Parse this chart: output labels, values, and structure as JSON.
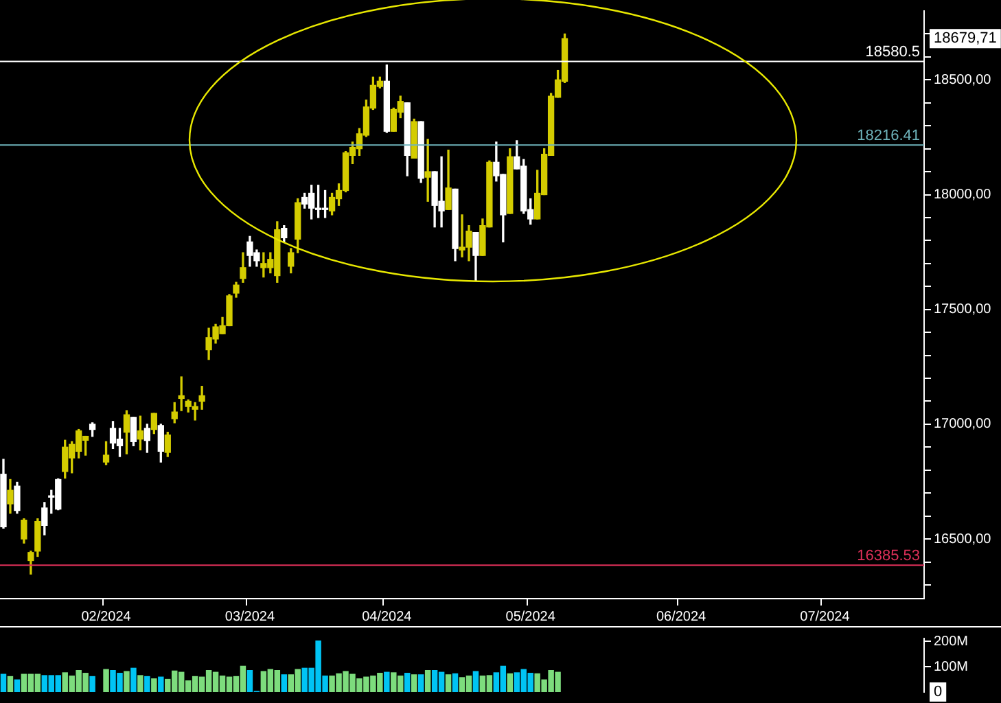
{
  "chart_data": [
    {
      "type": "candlestick",
      "categories": [
        null,
        null,
        null,
        null,
        null,
        null,
        null,
        null,
        null,
        null,
        null,
        null,
        null,
        null,
        null,
        "02/2024",
        null,
        null,
        null,
        null,
        null,
        null,
        null,
        null,
        null,
        null,
        null,
        null,
        null,
        null,
        null,
        null,
        null,
        null,
        null,
        null,
        "03/2024",
        null,
        null,
        null,
        null,
        null,
        null,
        null,
        null,
        null,
        null,
        null,
        null,
        null,
        null,
        null,
        null,
        null,
        null,
        null,
        "04/2024",
        null,
        null,
        null,
        null,
        null,
        null,
        null,
        null,
        null,
        null,
        null,
        null,
        null,
        null,
        null,
        null,
        null,
        null,
        null,
        null,
        "05/2024",
        null,
        null,
        null,
        null,
        null,
        null,
        null,
        null,
        null,
        null,
        null,
        null,
        null,
        null,
        null,
        null,
        null,
        null,
        null,
        null,
        null,
        "06/2024",
        null,
        null,
        null,
        null,
        null,
        null,
        null,
        null,
        null,
        null,
        null,
        null,
        null,
        null,
        null,
        null,
        null,
        null,
        null,
        null,
        "07/2024",
        null,
        null,
        null,
        null,
        null,
        null,
        null,
        null,
        null,
        null,
        null,
        null,
        null,
        null
      ],
      "ohlc": [
        [
          16782,
          16847,
          16547,
          16553
        ],
        [
          16653,
          16759,
          16612,
          16712
        ],
        [
          16730,
          16747,
          16612,
          16624
        ],
        [
          16500,
          16588,
          16482,
          16582
        ],
        [
          16406,
          16447,
          16347,
          16441
        ],
        [
          16447,
          16588,
          16424,
          16576
        ],
        [
          16635,
          16659,
          16518,
          16559
        ],
        [
          16688,
          16712,
          16612,
          16682
        ],
        [
          16759,
          16762,
          16627,
          16630
        ],
        [
          16794,
          16930,
          16765,
          16900
        ],
        [
          16853,
          16924,
          16788,
          16912
        ],
        [
          16882,
          16977,
          16853,
          16971
        ],
        [
          16930,
          16947,
          16865,
          16947
        ],
        [
          17000,
          17006,
          16947,
          16977
        ],
        null,
        [
          16835,
          16924,
          16824,
          16865
        ],
        [
          16982,
          17012,
          16894,
          16918
        ],
        [
          16935,
          16982,
          16859,
          16906
        ],
        [
          16965,
          17059,
          16871,
          17041
        ],
        [
          17030,
          17030,
          16906,
          16924
        ],
        [
          16935,
          17035,
          16888,
          16971
        ],
        [
          16982,
          17000,
          16877,
          16929
        ],
        [
          16977,
          17047,
          16959,
          17047
        ],
        [
          16994,
          17000,
          16835,
          16882
        ],
        [
          16877,
          16965,
          16859,
          16953
        ],
        [
          17024,
          17094,
          17006,
          17053
        ],
        [
          17112,
          17206,
          17059,
          17124
        ],
        [
          17077,
          17106,
          17053,
          17100
        ],
        [
          17065,
          17094,
          17018,
          17077
        ],
        [
          17100,
          17165,
          17065,
          17124
        ],
        [
          17324,
          17418,
          17282,
          17377
        ],
        [
          17371,
          17435,
          17353,
          17424
        ],
        [
          17394,
          17465,
          17394,
          17429
        ],
        [
          17429,
          17565,
          17429,
          17559
        ],
        [
          17571,
          17618,
          17553,
          17606
        ],
        [
          17635,
          17747,
          17618,
          17682
        ],
        [
          17794,
          17818,
          17688,
          17735
        ],
        [
          17747,
          17759,
          17688,
          17712
        ],
        [
          17682,
          17747,
          17641,
          17700
        ],
        [
          17682,
          17747,
          17659,
          17718
        ],
        [
          17647,
          17882,
          17618,
          17847
        ],
        [
          17853,
          17865,
          17794,
          17812
        ],
        [
          17688,
          17765,
          17659,
          17747
        ],
        [
          17806,
          17982,
          17747,
          17965
        ],
        [
          17988,
          18006,
          17941,
          17959
        ],
        [
          18006,
          18041,
          17894,
          17941
        ],
        [
          17941,
          18041,
          17900,
          17935
        ],
        [
          17941,
          18018,
          17900,
          17935
        ],
        [
          17929,
          18006,
          17912,
          17988
        ],
        [
          17982,
          18047,
          17953,
          18018
        ],
        [
          18018,
          18188,
          18012,
          18182
        ],
        [
          18171,
          18229,
          18135,
          18206
        ],
        [
          18200,
          18288,
          18171,
          18265
        ],
        [
          18259,
          18412,
          18253,
          18382
        ],
        [
          18377,
          18512,
          18371,
          18476
        ],
        [
          18471,
          18512,
          18465,
          18494
        ],
        [
          18494,
          18565,
          18271,
          18276
        ],
        [
          18276,
          18377,
          18276,
          18371
        ],
        [
          18359,
          18429,
          18335,
          18406
        ],
        [
          18400,
          18400,
          18082,
          18171
        ],
        [
          18159,
          18329,
          18159,
          18318
        ],
        [
          18318,
          18318,
          18053,
          18071
        ],
        [
          18076,
          18241,
          17971,
          18100
        ],
        [
          18100,
          18100,
          17859,
          17953
        ],
        [
          17971,
          18165,
          17859,
          17929
        ],
        [
          17935,
          18194,
          17935,
          18029
        ],
        [
          18024,
          18024,
          17712,
          17765
        ],
        [
          17759,
          17912,
          17729,
          17771
        ],
        [
          17771,
          17865,
          17712,
          17841
        ],
        [
          17835,
          17835,
          17624,
          17735
        ],
        [
          17735,
          17894,
          17735,
          17865
        ],
        [
          17859,
          18147,
          17859,
          18141
        ],
        [
          18141,
          18229,
          18059,
          18082
        ],
        [
          18088,
          18088,
          17794,
          17912
        ],
        [
          17918,
          18200,
          17918,
          18165
        ],
        [
          18165,
          18235,
          18112,
          18112
        ],
        [
          18124,
          18153,
          17918,
          17929
        ],
        [
          17935,
          17982,
          17871,
          17894
        ],
        [
          17894,
          18106,
          17894,
          18006
        ],
        [
          18000,
          18200,
          18000,
          18176
        ],
        [
          18171,
          18441,
          18171,
          18429
        ],
        [
          18424,
          18541,
          18424,
          18500
        ],
        [
          18494,
          18700,
          18488,
          18679.71
        ],
        null,
        null,
        null,
        null,
        null,
        null,
        null,
        null,
        null,
        null,
        null,
        null,
        null,
        null,
        null,
        null,
        null,
        null,
        null,
        null,
        null,
        null,
        null,
        null,
        null,
        null,
        null,
        null,
        null,
        null,
        null,
        null,
        null,
        null,
        null,
        null,
        null,
        null,
        null,
        null,
        null,
        null,
        null,
        null,
        null,
        null,
        null,
        null,
        null,
        null,
        null,
        null
      ],
      "colors": [
        "#ffffff",
        "#d4cc00",
        "#ffffff",
        "#d4cc00",
        "#d4cc00",
        "#d4cc00",
        "#ffffff",
        "#ffffff",
        "#ffffff",
        "#d4cc00",
        "#d4cc00",
        "#d4cc00",
        "#d4cc00",
        "#ffffff",
        null,
        "#d4cc00",
        "#ffffff",
        "#ffffff",
        "#d4cc00",
        "#ffffff",
        "#d4cc00",
        "#ffffff",
        "#d4cc00",
        "#ffffff",
        "#d4cc00",
        "#d4cc00",
        "#d4cc00",
        "#d4cc00",
        "#d4cc00",
        "#d4cc00",
        "#d4cc00",
        "#d4cc00",
        "#d4cc00",
        "#d4cc00",
        "#d4cc00",
        "#d4cc00",
        "#ffffff",
        "#ffffff",
        "#d4cc00",
        "#d4cc00",
        "#d4cc00",
        "#ffffff",
        "#d4cc00",
        "#d4cc00",
        "#ffffff",
        "#ffffff",
        "#ffffff",
        "#ffffff",
        "#d4cc00",
        "#d4cc00",
        "#d4cc00",
        "#d4cc00",
        "#d4cc00",
        "#d4cc00",
        "#d4cc00",
        "#d4cc00",
        "#ffffff",
        "#d4cc00",
        "#d4cc00",
        "#ffffff",
        "#d4cc00",
        "#ffffff",
        "#d4cc00",
        "#ffffff",
        "#ffffff",
        "#d4cc00",
        "#ffffff",
        "#d4cc00",
        "#d4cc00",
        "#ffffff",
        "#d4cc00",
        "#d4cc00",
        "#ffffff",
        "#ffffff",
        "#d4cc00",
        "#ffffff",
        "#ffffff",
        "#ffffff",
        "#d4cc00",
        "#d4cc00",
        "#d4cc00",
        "#d4cc00",
        "#d4cc00",
        null,
        null,
        null,
        null,
        null,
        null,
        null,
        null,
        null,
        null,
        null,
        null,
        null,
        null,
        null,
        null,
        null,
        null,
        null,
        null,
        null,
        null,
        null,
        null,
        null,
        null,
        null,
        null,
        null,
        null,
        null,
        null,
        null,
        null,
        null,
        null,
        null,
        null,
        null,
        null,
        null,
        null,
        null,
        null,
        null,
        null,
        null,
        null,
        null,
        null,
        null,
        null
      ],
      "ylim": [
        16240,
        18800
      ],
      "yticks": [
        {
          "value": 16300,
          "label": null
        },
        {
          "value": 16400,
          "label": null
        },
        {
          "value": 16500,
          "label": "16500,00"
        },
        {
          "value": 16600,
          "label": null
        },
        {
          "value": 16700,
          "label": null
        },
        {
          "value": 16800,
          "label": null
        },
        {
          "value": 16900,
          "label": null
        },
        {
          "value": 17000,
          "label": "17000,00"
        },
        {
          "value": 17100,
          "label": null
        },
        {
          "value": 17200,
          "label": null
        },
        {
          "value": 17300,
          "label": null
        },
        {
          "value": 17400,
          "label": null
        },
        {
          "value": 17500,
          "label": "17500,00"
        },
        {
          "value": 17600,
          "label": null
        },
        {
          "value": 17700,
          "label": null
        },
        {
          "value": 17800,
          "label": null
        },
        {
          "value": 17900,
          "label": null
        },
        {
          "value": 18000,
          "label": "18000,00"
        },
        {
          "value": 18100,
          "label": null
        },
        {
          "value": 18200,
          "label": null
        },
        {
          "value": 18300,
          "label": null
        },
        {
          "value": 18400,
          "label": null
        },
        {
          "value": 18500,
          "label": "18500,00"
        },
        {
          "value": 18600,
          "label": null
        },
        {
          "value": 18700,
          "label": null
        }
      ],
      "ref_lines": [
        {
          "axis": "y",
          "value": 18580.5,
          "label": "18580.5",
          "color": "#ffffff"
        },
        {
          "axis": "y",
          "value": 18216.41,
          "label": "18216.41",
          "color": "#6fb4bc"
        },
        {
          "axis": "y",
          "value": 16385.53,
          "label": "16385.53",
          "color": "#e0305a"
        }
      ],
      "annotations": [
        "18679,71"
      ]
    },
    {
      "type": "bar",
      "categories": [
        null,
        null,
        null,
        null,
        null,
        null,
        null,
        null,
        null,
        null,
        null,
        null,
        null,
        null,
        null,
        null,
        null,
        null,
        null,
        null,
        null,
        null,
        null,
        null,
        null,
        null,
        null,
        null,
        null,
        null,
        null,
        null,
        null,
        null,
        null,
        null,
        null,
        null,
        null,
        null,
        null,
        null,
        null,
        null,
        null,
        null,
        null,
        null,
        null,
        null,
        null,
        null,
        null,
        null,
        null,
        null,
        null,
        null,
        null,
        null,
        null,
        null,
        null,
        null,
        null,
        null,
        null,
        null,
        null,
        null,
        null,
        null,
        null,
        null,
        null,
        null,
        null,
        null,
        null,
        null,
        null,
        null,
        null,
        null,
        null,
        null,
        null,
        null,
        null,
        null,
        null,
        null,
        null,
        null,
        null,
        null,
        null,
        null,
        null,
        null,
        null,
        null,
        null,
        null,
        null,
        null,
        null,
        null,
        null,
        null,
        null,
        null,
        null,
        null,
        null,
        null,
        null,
        null,
        null,
        null,
        null,
        null,
        null,
        null,
        null,
        null,
        null,
        null,
        null,
        null,
        null,
        null,
        null,
        null,
        null
      ],
      "values": [
        72,
        63,
        50,
        72,
        72,
        72,
        67,
        67,
        67,
        78,
        65,
        87,
        76,
        63,
        null,
        91,
        87,
        76,
        83,
        96,
        67,
        63,
        54,
        61,
        52,
        85,
        80,
        46,
        63,
        61,
        87,
        80,
        65,
        61,
        63,
        104,
        87,
        4,
        83,
        91,
        87,
        70,
        70,
        91,
        96,
        96,
        204,
        65,
        65,
        74,
        83,
        72,
        54,
        61,
        65,
        76,
        80,
        78,
        65,
        76,
        70,
        70,
        87,
        87,
        80,
        70,
        74,
        59,
        65,
        83,
        65,
        67,
        78,
        104,
        74,
        78,
        91,
        76,
        74,
        50,
        87,
        80,
        null,
        null,
        null,
        null,
        null,
        null,
        null,
        null,
        null,
        null,
        null,
        null,
        null,
        null,
        null,
        null,
        null,
        null,
        null,
        null,
        null,
        null,
        null,
        null,
        null,
        null,
        null,
        null,
        null,
        null,
        null,
        null,
        null,
        null,
        null,
        null,
        null,
        null,
        null,
        null,
        null,
        null,
        null,
        null,
        null,
        null,
        null,
        null,
        null,
        null,
        null,
        null,
        null
      ],
      "colors": [
        "#00c4f4",
        "#7ddc7d",
        "#00c4f4",
        "#7ddc7d",
        "#7ddc7d",
        "#7ddc7d",
        "#00c4f4",
        "#00c4f4",
        "#00c4f4",
        "#7ddc7d",
        "#7ddc7d",
        "#7ddc7d",
        "#7ddc7d",
        "#00c4f4",
        null,
        "#7ddc7d",
        "#00c4f4",
        "#00c4f4",
        "#7ddc7d",
        "#00c4f4",
        "#7ddc7d",
        "#00c4f4",
        "#7ddc7d",
        "#00c4f4",
        "#7ddc7d",
        "#7ddc7d",
        "#7ddc7d",
        "#7ddc7d",
        "#7ddc7d",
        "#7ddc7d",
        "#7ddc7d",
        "#7ddc7d",
        "#7ddc7d",
        "#7ddc7d",
        "#7ddc7d",
        "#7ddc7d",
        "#00c4f4",
        "#00c4f4",
        "#7ddc7d",
        "#7ddc7d",
        "#7ddc7d",
        "#00c4f4",
        "#7ddc7d",
        "#7ddc7d",
        "#00c4f4",
        "#00c4f4",
        "#00c4f4",
        "#00c4f4",
        "#7ddc7d",
        "#7ddc7d",
        "#7ddc7d",
        "#7ddc7d",
        "#7ddc7d",
        "#7ddc7d",
        "#7ddc7d",
        "#7ddc7d",
        "#00c4f4",
        "#7ddc7d",
        "#7ddc7d",
        "#00c4f4",
        "#7ddc7d",
        "#00c4f4",
        "#7ddc7d",
        "#00c4f4",
        "#00c4f4",
        "#7ddc7d",
        "#00c4f4",
        "#7ddc7d",
        "#7ddc7d",
        "#00c4f4",
        "#7ddc7d",
        "#7ddc7d",
        "#00c4f4",
        "#00c4f4",
        "#7ddc7d",
        "#00c4f4",
        "#00c4f4",
        "#00c4f4",
        "#7ddc7d",
        "#7ddc7d",
        "#7ddc7d",
        "#7ddc7d",
        "#7ddc7d",
        null,
        null,
        null,
        null,
        null,
        null,
        null,
        null,
        null,
        null,
        null,
        null,
        null,
        null,
        null,
        null,
        null,
        null,
        null,
        null,
        null,
        null,
        null,
        null,
        null,
        null,
        null,
        null,
        null,
        null,
        null,
        null,
        null,
        null,
        null,
        null,
        null,
        null,
        null,
        null,
        null,
        null,
        null,
        null,
        null,
        null,
        null,
        null,
        null,
        null,
        null,
        null
      ],
      "ylim": [
        0,
        212
      ],
      "yticks": [
        {
          "value": 100,
          "label": "100M"
        },
        {
          "value": 200,
          "label": "200M"
        }
      ],
      "tick_labels": "y",
      "annotations": [
        "0"
      ]
    }
  ]
}
